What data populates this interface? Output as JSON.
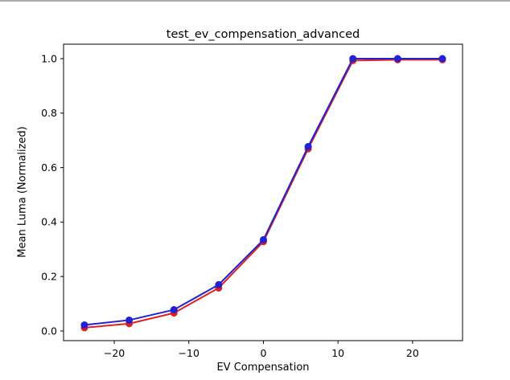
{
  "figure": {
    "background_color": "#ffffff"
  },
  "chart_data": {
    "type": "line",
    "title": "test_ev_compensation_advanced",
    "xlabel": "EV Compensation",
    "ylabel": "Mean Luma (Normalized)",
    "x": [
      -24,
      -18,
      -12,
      -6,
      0,
      6,
      12,
      18,
      24
    ],
    "series": [
      {
        "name": "red-series",
        "color": "#e02020",
        "marker": "circle",
        "values": [
          0.012,
          0.027,
          0.066,
          0.158,
          0.328,
          0.669,
          0.993,
          0.996,
          0.996
        ]
      },
      {
        "name": "blue-series",
        "color": "#2222d2",
        "marker": "circle",
        "values": [
          0.022,
          0.04,
          0.078,
          0.17,
          0.335,
          0.677,
          1.0,
          1.0,
          1.0
        ]
      }
    ],
    "xticks": {
      "values": [
        -20,
        -10,
        0,
        10,
        20
      ],
      "labels": [
        "−20",
        "−10",
        "0",
        "10",
        "20"
      ]
    },
    "yticks": {
      "values": [
        0.0,
        0.2,
        0.4,
        0.6,
        0.8,
        1.0
      ],
      "labels": [
        "0.0",
        "0.2",
        "0.4",
        "0.6",
        "0.8",
        "1.0"
      ]
    },
    "xlim": [
      -26.8,
      26.7
    ],
    "ylim": [
      -0.0354,
      1.0531
    ],
    "grid": false,
    "legend": null,
    "axis_color": "#000000"
  }
}
